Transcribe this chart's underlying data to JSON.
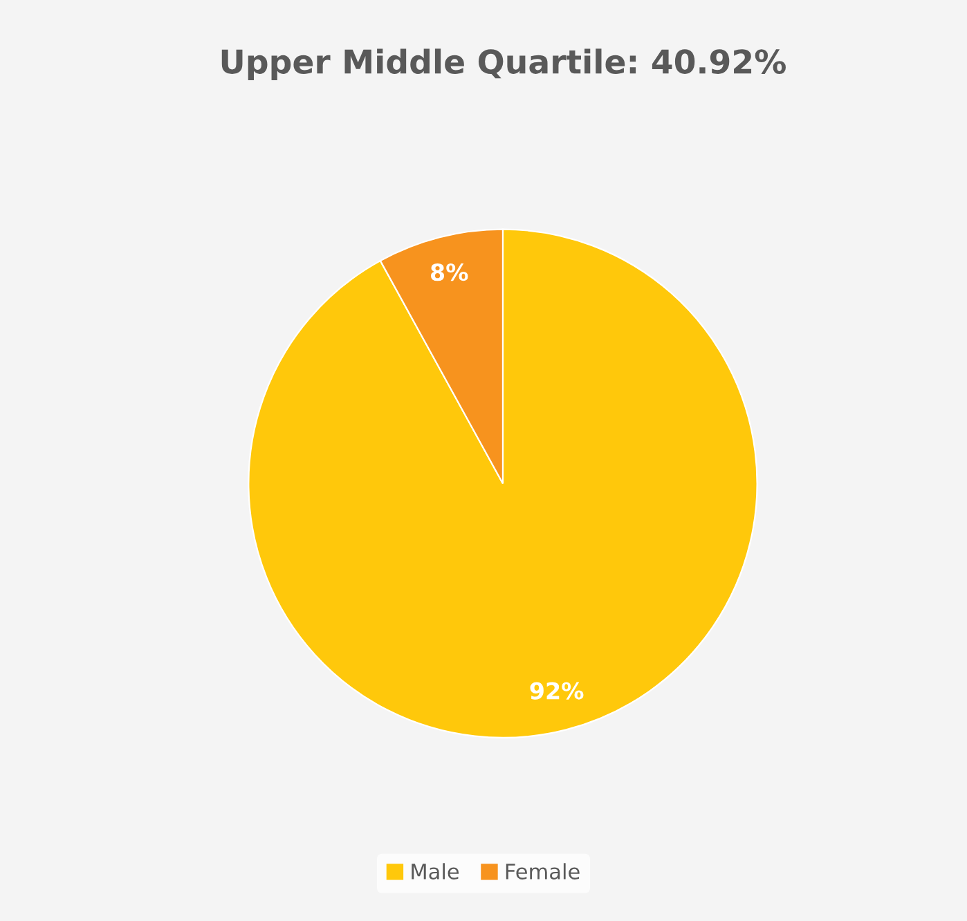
{
  "chart_data": {
    "type": "pie",
    "title": "Upper Middle Quartile: 40.92%",
    "categories": [
      "Male",
      "Female"
    ],
    "values": [
      92,
      8
    ],
    "colors": [
      "#ffc80b",
      "#f7931e"
    ],
    "value_labels": [
      "92%",
      "8%"
    ],
    "legend": "bottom"
  }
}
